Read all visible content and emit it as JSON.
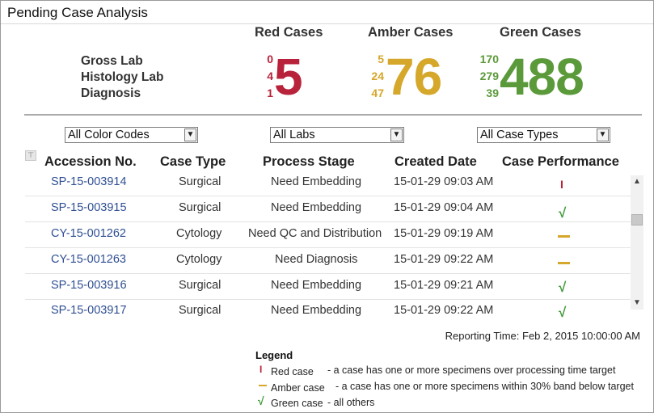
{
  "title": "Pending Case Analysis",
  "summary": {
    "lab_labels": [
      "Gross Lab",
      "Histology Lab",
      "Diagnosis"
    ],
    "red": {
      "heading": "Red Cases",
      "breakdown": [
        "0",
        "4",
        "1"
      ],
      "total": "5",
      "color": "#b8223a"
    },
    "amber": {
      "heading": "Amber Cases",
      "breakdown": [
        "5",
        "24",
        "47"
      ],
      "total": "76",
      "color": "#d5a72a"
    },
    "green": {
      "heading": "Green Cases",
      "breakdown": [
        "170",
        "279",
        "39"
      ],
      "total": "488",
      "color": "#5b9a3a"
    }
  },
  "filters": {
    "color_codes": "All Color Codes",
    "labs": "All Labs",
    "case_types": "All Case Types"
  },
  "table": {
    "columns": [
      "Accession No.",
      "Case Type",
      "Process Stage",
      "Created Date",
      "Case Performance"
    ],
    "rows": [
      {
        "accession": "SP-15-003914",
        "case_type": "Surgical",
        "stage": "Need Embedding",
        "created": "15-01-29 09:03 AM",
        "performance": "red"
      },
      {
        "accession": "SP-15-003915",
        "case_type": "Surgical",
        "stage": "Need Embedding",
        "created": "15-01-29 09:04 AM",
        "performance": "green"
      },
      {
        "accession": "CY-15-001262",
        "case_type": "Cytology",
        "stage": "Need QC and Distribution",
        "created": "15-01-29 09:19 AM",
        "performance": "amber"
      },
      {
        "accession": "CY-15-001263",
        "case_type": "Cytology",
        "stage": "Need Diagnosis",
        "created": "15-01-29 09:22 AM",
        "performance": "amber"
      },
      {
        "accession": "SP-15-003916",
        "case_type": "Surgical",
        "stage": "Need Embedding",
        "created": "15-01-29 09:21 AM",
        "performance": "green"
      },
      {
        "accession": "SP-15-003917",
        "case_type": "Surgical",
        "stage": "Need Embedding",
        "created": "15-01-29 09:22 AM",
        "performance": "green"
      }
    ]
  },
  "reporting_time": "Reporting Time: Feb 2, 2015 10:00:00 AM",
  "legend": {
    "title": "Legend",
    "items": [
      {
        "label": "Red case",
        "desc": "- a case has one or more specimens over processing time target"
      },
      {
        "label": "Amber case",
        "desc": "- a case has one or more specimens within 30% band below target"
      },
      {
        "label": "Green case",
        "desc": "- all others"
      }
    ]
  }
}
